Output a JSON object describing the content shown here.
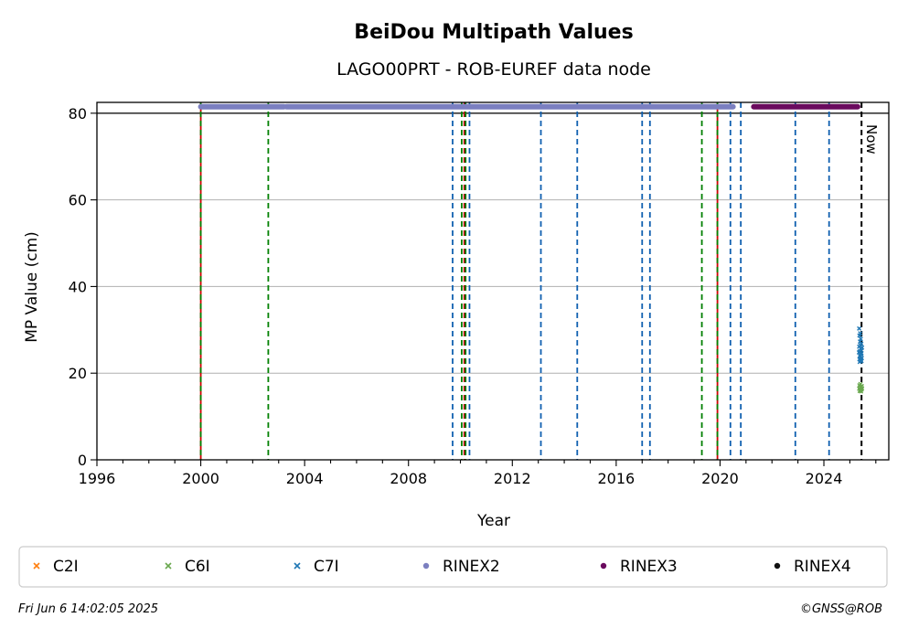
{
  "chart_data": {
    "type": "scatter",
    "title": "BeiDou Multipath Values",
    "subtitle": "LAGO00PRT - ROB-EUREF data node",
    "xlabel": "Year",
    "ylabel": "MP Value (cm)",
    "xlim": [
      1996,
      2026.5
    ],
    "ylim": [
      0,
      82.5
    ],
    "x_ticks": [
      1996,
      2000,
      2004,
      2008,
      2012,
      2016,
      2020,
      2024
    ],
    "y_ticks": [
      0,
      20,
      40,
      60,
      80
    ],
    "grid": "horizontal",
    "legend_position": "bottom",
    "series": [
      {
        "name": "C2I",
        "color": "#ff7f0e",
        "marker": "x",
        "points": []
      },
      {
        "name": "C6I",
        "color": "#6aa84f",
        "marker": "x",
        "points": [
          [
            2025.36,
            16.4
          ],
          [
            2025.37,
            17.2
          ],
          [
            2025.38,
            15.9
          ],
          [
            2025.39,
            16.8
          ],
          [
            2025.4,
            16.1
          ],
          [
            2025.41,
            17.5
          ],
          [
            2025.42,
            16.3
          ],
          [
            2025.43,
            15.8
          ],
          [
            2025.44,
            16.9
          ],
          [
            2025.45,
            16.2
          ],
          [
            2025.46,
            17.0
          ],
          [
            2025.47,
            16.5
          ]
        ]
      },
      {
        "name": "C7I",
        "color": "#1f77b4",
        "marker": "x",
        "points": [
          [
            2025.35,
            24.8
          ],
          [
            2025.36,
            30.3
          ],
          [
            2025.36,
            26.1
          ],
          [
            2025.37,
            23.2
          ],
          [
            2025.37,
            28.7
          ],
          [
            2025.38,
            25.0
          ],
          [
            2025.38,
            22.6
          ],
          [
            2025.39,
            27.3
          ],
          [
            2025.39,
            24.1
          ],
          [
            2025.4,
            29.2
          ],
          [
            2025.4,
            23.8
          ],
          [
            2025.41,
            26.4
          ],
          [
            2025.41,
            22.9
          ],
          [
            2025.42,
            25.7
          ],
          [
            2025.42,
            27.9
          ],
          [
            2025.43,
            24.4
          ],
          [
            2025.43,
            23.1
          ],
          [
            2025.44,
            26.8
          ],
          [
            2025.44,
            25.2
          ],
          [
            2025.45,
            22.8
          ],
          [
            2025.45,
            24.6
          ],
          [
            2025.46,
            23.5
          ],
          [
            2025.47,
            25.9
          ]
        ]
      },
      {
        "name": "RINEX2",
        "color": "#7b7fc0",
        "marker": "o",
        "segments": [
          [
            2000.0,
            2003.2
          ],
          [
            2003.3,
            2020.5
          ]
        ],
        "y": 81.5
      },
      {
        "name": "RINEX3",
        "color": "#6a0a5e",
        "marker": "o",
        "segments": [
          [
            2021.3,
            2025.3
          ]
        ],
        "y": 81.5
      },
      {
        "name": "RINEX4",
        "color": "#111111",
        "marker": "o",
        "points": []
      }
    ],
    "event_lines": [
      {
        "x": 2000.0,
        "color": "#cc0000",
        "style": "solid"
      },
      {
        "x": 2000.0,
        "color": "#008000",
        "style": "dashed"
      },
      {
        "x": 2002.6,
        "color": "#008000",
        "style": "dashed"
      },
      {
        "x": 2009.7,
        "color": "#1060b0",
        "style": "dashed"
      },
      {
        "x": 2010.05,
        "color": "#008000",
        "style": "dashed"
      },
      {
        "x": 2010.15,
        "color": "#cc0000",
        "style": "dashed"
      },
      {
        "x": 2010.2,
        "color": "#008000",
        "style": "dashed"
      },
      {
        "x": 2010.35,
        "color": "#1060b0",
        "style": "dashed"
      },
      {
        "x": 2013.1,
        "color": "#1060b0",
        "style": "dashed"
      },
      {
        "x": 2014.5,
        "color": "#1060b0",
        "style": "dashed"
      },
      {
        "x": 2017.0,
        "color": "#1060b0",
        "style": "dashed"
      },
      {
        "x": 2017.3,
        "color": "#1060b0",
        "style": "dashed"
      },
      {
        "x": 2019.3,
        "color": "#008000",
        "style": "dashed"
      },
      {
        "x": 2019.9,
        "color": "#cc0000",
        "style": "solid"
      },
      {
        "x": 2019.9,
        "color": "#008000",
        "style": "dashed"
      },
      {
        "x": 2020.4,
        "color": "#1060b0",
        "style": "dashed"
      },
      {
        "x": 2020.8,
        "color": "#1060b0",
        "style": "dashed"
      },
      {
        "x": 2022.9,
        "color": "#1060b0",
        "style": "dashed"
      },
      {
        "x": 2024.2,
        "color": "#1060b0",
        "style": "dashed"
      }
    ],
    "now_line": {
      "x": 2025.45,
      "label": "Now"
    }
  },
  "footer": {
    "timestamp": "Fri Jun  6 14:02:05 2025",
    "credit": "©GNSS@ROB"
  }
}
